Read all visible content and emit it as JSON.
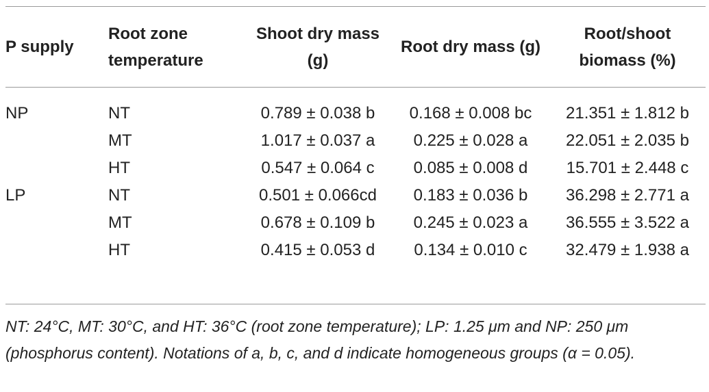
{
  "table": {
    "headers": [
      "P supply",
      "Root zone temperature",
      "Shoot dry mass (g)",
      "Root dry mass (g)",
      "Root/shoot biomass (%)"
    ],
    "rows": [
      {
        "p_supply": "NP",
        "temperature": "NT",
        "shoot": "0.789 ± 0.038 b",
        "root": "0.168 ± 0.008 bc",
        "ratio": "21.351 ± 1.812 b"
      },
      {
        "p_supply": "",
        "temperature": "MT",
        "shoot": "1.017 ± 0.037 a",
        "root": "0.225 ± 0.028 a",
        "ratio": "22.051 ± 2.035 b"
      },
      {
        "p_supply": "",
        "temperature": "HT",
        "shoot": "0.547 ± 0.064 c",
        "root": "0.085 ± 0.008 d",
        "ratio": "15.701 ± 2.448 c"
      },
      {
        "p_supply": "LP",
        "temperature": "NT",
        "shoot": "0.501 ± 0.066cd",
        "root": "0.183 ± 0.036 b",
        "ratio": "36.298 ± 2.771 a"
      },
      {
        "p_supply": "",
        "temperature": "MT",
        "shoot": "0.678 ± 0.109 b",
        "root": "0.245 ± 0.023 a",
        "ratio": "36.555 ± 3.522 a"
      },
      {
        "p_supply": "",
        "temperature": "HT",
        "shoot": "0.415 ± 0.053 d",
        "root": "0.134 ± 0.010 c",
        "ratio": "32.479 ± 1.938 a"
      }
    ]
  },
  "footnote": "NT: 24°C, MT: 30°C, and HT: 36°C (root zone temperature); LP: 1.25 μm and NP: 250 μm (phosphorus content). Notations of a, b, c, and d indicate homogeneous groups (α = 0.05)."
}
